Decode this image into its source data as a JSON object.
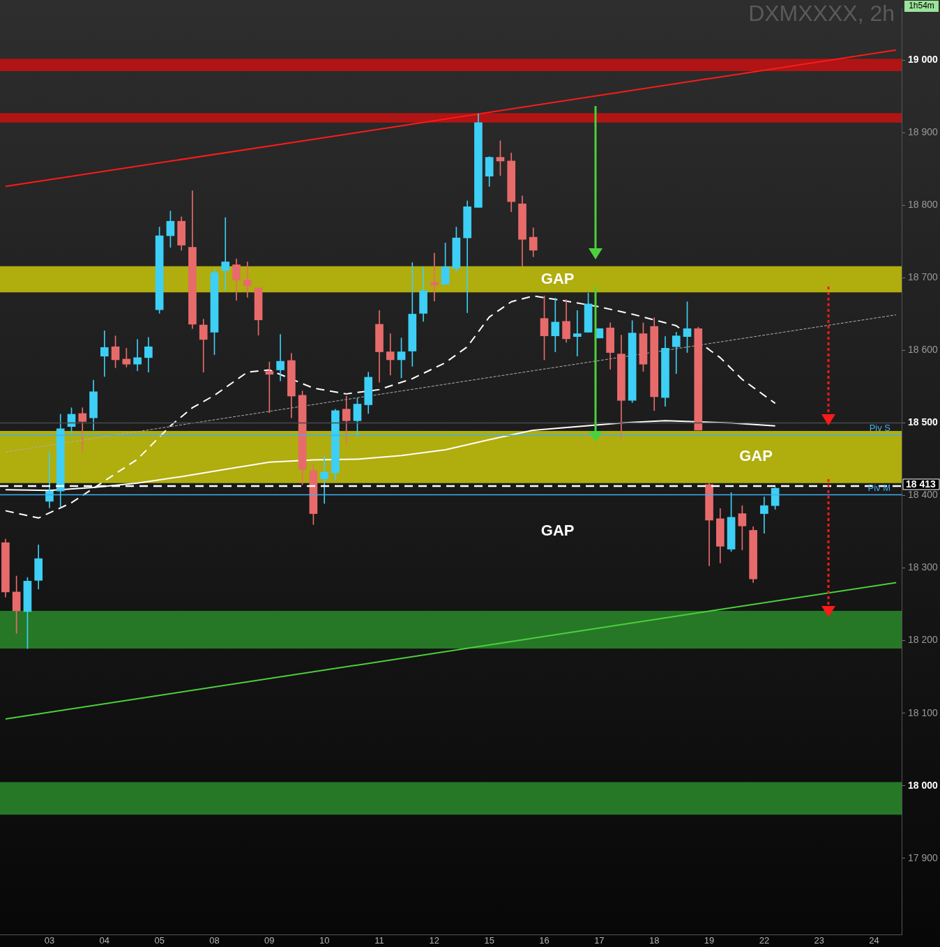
{
  "chart_data": {
    "type": "candlestick",
    "title": "DXMXXXX, 2h",
    "categories": [
      null,
      null,
      null,
      null,
      "03",
      null,
      null,
      null,
      null,
      "04",
      null,
      null,
      null,
      null,
      "05",
      null,
      null,
      null,
      null,
      "08",
      null,
      null,
      null,
      null,
      "09",
      null,
      null,
      null,
      null,
      "10",
      null,
      null,
      null,
      null,
      "11",
      null,
      null,
      null,
      null,
      "12",
      null,
      null,
      null,
      null,
      "15",
      null,
      null,
      null,
      null,
      "16",
      null,
      null,
      null,
      null,
      "17",
      null,
      null,
      null,
      null,
      "18",
      null,
      null,
      null,
      null,
      "19",
      null,
      null,
      null,
      null,
      "22",
      null,
      null,
      null,
      null,
      "23",
      null,
      null,
      null,
      null,
      "24",
      null,
      null
    ],
    "ohlc": [
      [
        18335,
        18340,
        18260,
        18267
      ],
      [
        18267,
        18289,
        18210,
        18241
      ],
      [
        18240,
        18287,
        18189,
        18282
      ],
      [
        18283,
        18332,
        18271,
        18313
      ],
      [
        18392,
        18461,
        18383,
        18406
      ],
      [
        18406,
        18512,
        18384,
        18492
      ],
      [
        18495,
        18521,
        18486,
        18512
      ],
      [
        18513,
        18521,
        18460,
        18502
      ],
      [
        18507,
        18559,
        18490,
        18543
      ],
      [
        18592,
        18627,
        18564,
        18604
      ],
      [
        18605,
        18620,
        18576,
        18587
      ],
      [
        18588,
        18603,
        18577,
        18581
      ],
      [
        18581,
        18615,
        18572,
        18590
      ],
      [
        18590,
        18618,
        18570,
        18605
      ],
      [
        18656,
        18770,
        18651,
        18758
      ],
      [
        18758,
        18792,
        18742,
        18778
      ],
      [
        18778,
        18784,
        18738,
        18745
      ],
      [
        18742,
        18820,
        18630,
        18636
      ],
      [
        18635,
        18643,
        18570,
        18615
      ],
      [
        18625,
        18713,
        18594,
        18707
      ],
      [
        18710,
        18783,
        18683,
        18722
      ],
      [
        18718,
        18726,
        18669,
        18697
      ],
      [
        18697,
        18722,
        18673,
        18689
      ],
      [
        18686,
        18686,
        18621,
        18642
      ],
      [
        18571,
        18584,
        18514,
        18567
      ],
      [
        18573,
        18622,
        18558,
        18585
      ],
      [
        18586,
        18596,
        18507,
        18537
      ],
      [
        18538,
        18544,
        18415,
        18436
      ],
      [
        18434,
        18443,
        18360,
        18375
      ],
      [
        18423,
        18455,
        18389,
        18432
      ],
      [
        18431,
        18519,
        18421,
        18517
      ],
      [
        18519,
        18537,
        18470,
        18503
      ],
      [
        18503,
        18534,
        18483,
        18526
      ],
      [
        18525,
        18570,
        18513,
        18563
      ],
      [
        18636,
        18655,
        18556,
        18598
      ],
      [
        18598,
        18623,
        18566,
        18587
      ],
      [
        18587,
        18617,
        18562,
        18598
      ],
      [
        18599,
        18721,
        18578,
        18650
      ],
      [
        18651,
        18715,
        18640,
        18682
      ],
      [
        18694,
        18734,
        18668,
        18690
      ],
      [
        18691,
        18748,
        18691,
        18715
      ],
      [
        18713,
        18770,
        18709,
        18755
      ],
      [
        18755,
        18806,
        18652,
        18798
      ],
      [
        18797,
        18926,
        18797,
        18914
      ],
      [
        18840,
        18867,
        18826,
        18866
      ],
      [
        18866,
        18889,
        18841,
        18861
      ],
      [
        18861,
        18872,
        18791,
        18805
      ],
      [
        18802,
        18813,
        18716,
        18753
      ],
      [
        18756,
        18769,
        18729,
        18738
      ],
      [
        18644,
        18675,
        18587,
        18620
      ],
      [
        18620,
        18672,
        18598,
        18639
      ],
      [
        18640,
        18670,
        18611,
        18616
      ],
      [
        18619,
        18655,
        18592,
        18623
      ],
      [
        18625,
        18679,
        18625,
        18664
      ],
      [
        18617,
        18630,
        18617,
        18630
      ],
      [
        18631,
        18638,
        18574,
        18597
      ],
      [
        18595,
        18621,
        18479,
        18531
      ],
      [
        18531,
        18641,
        18528,
        18624
      ],
      [
        18623,
        18638,
        18571,
        18581
      ],
      [
        18633,
        18645,
        18517,
        18536
      ],
      [
        18535,
        18619,
        18523,
        18603
      ],
      [
        18605,
        18625,
        18568,
        18620
      ],
      [
        18619,
        18667,
        18597,
        18630
      ],
      [
        18630,
        18632,
        18490,
        18490
      ],
      [
        18415,
        18417,
        18303,
        18366
      ],
      [
        18368,
        18382,
        18307,
        18330
      ],
      [
        18326,
        18404,
        18323,
        18370
      ],
      [
        18375,
        18386,
        18325,
        18358
      ],
      [
        18352,
        18357,
        18280,
        18285
      ],
      [
        18375,
        18398,
        18348,
        18386
      ],
      [
        18386,
        18411,
        18381,
        18410
      ],
      null,
      null,
      null,
      null,
      null,
      null,
      null,
      null,
      null,
      null,
      null
    ],
    "colors": [
      "#e86b6b",
      "#e86b6b",
      "#3dcff5",
      "#3dcff5",
      "#3dcff5",
      "#3dcff5",
      "#3dcff5",
      "#e86b6b",
      "#3dcff5",
      "#3dcff5",
      "#e86b6b",
      "#e86b6b",
      "#3dcff5",
      "#3dcff5",
      "#3dcff5",
      "#3dcff5",
      "#e86b6b",
      "#e86b6b",
      "#e86b6b",
      "#3dcff5",
      "#3dcff5",
      "#e86b6b",
      "#e86b6b",
      "#e86b6b",
      "#e86b6b",
      "#3dcff5",
      "#e86b6b",
      "#e86b6b",
      "#e86b6b",
      "#3dcff5",
      "#3dcff5",
      "#e86b6b",
      "#3dcff5",
      "#3dcff5",
      "#e86b6b",
      "#e86b6b",
      "#3dcff5",
      "#3dcff5",
      "#3dcff5",
      "#e86b6b",
      "#3dcff5",
      "#3dcff5",
      "#3dcff5",
      "#3dcff5",
      "#3dcff5",
      "#e86b6b",
      "#e86b6b",
      "#e86b6b",
      "#e86b6b",
      "#e86b6b",
      "#3dcff5",
      "#e86b6b",
      "#3dcff5",
      "#3dcff5",
      "#3dcff5",
      "#e86b6b",
      "#e86b6b",
      "#3dcff5",
      "#e86b6b",
      "#e86b6b",
      "#3dcff5",
      "#3dcff5",
      "#3dcff5",
      "#e86b6b",
      "#e86b6b",
      "#e86b6b",
      "#3dcff5",
      "#e86b6b",
      "#e86b6b",
      "#3dcff5",
      "#3dcff5",
      null,
      null,
      null,
      null,
      null,
      null,
      null,
      null,
      null,
      null,
      null
    ],
    "series": [
      {
        "type": "line",
        "color": "#ffffff",
        "line_style": "solid",
        "values": [
          18408,
          null,
          null,
          null,
          18407,
          null,
          null,
          null,
          18411,
          null,
          null,
          null,
          18417,
          null,
          null,
          null,
          18426,
          null,
          null,
          null,
          18436,
          null,
          null,
          null,
          18446,
          null,
          null,
          null,
          18449,
          null,
          null,
          null,
          18450,
          null,
          null,
          null,
          18455,
          null,
          null,
          null,
          18463,
          null,
          null,
          null,
          18477,
          null,
          null,
          null,
          18490,
          null,
          null,
          null,
          18495,
          null,
          null,
          null,
          18500,
          null,
          null,
          null,
          18503,
          null,
          null,
          null,
          null,
          null,
          18500,
          null,
          null,
          null,
          18496,
          null,
          null,
          null,
          null,
          null,
          null,
          null,
          null,
          null,
          null,
          null
        ]
      },
      {
        "type": "line",
        "color": "#ffffff",
        "line_style": "dashed",
        "values": [
          18379,
          null,
          null,
          18369,
          null,
          null,
          18390,
          null,
          null,
          18420,
          null,
          null,
          18450,
          null,
          null,
          18496,
          null,
          18521,
          null,
          18538,
          null,
          null,
          18570,
          null,
          18573,
          null,
          null,
          null,
          18548,
          null,
          null,
          18540,
          null,
          null,
          18546,
          null,
          null,
          18561,
          null,
          null,
          18583,
          null,
          18605,
          null,
          18646,
          null,
          18667,
          null,
          18675,
          null,
          null,
          18668,
          null,
          null,
          18660,
          null,
          null,
          18650,
          null,
          null,
          null,
          18634,
          null,
          null,
          null,
          18590,
          null,
          18560,
          null,
          null,
          18527,
          null,
          null,
          null,
          null,
          null,
          null,
          null,
          null,
          null,
          null,
          null
        ]
      },
      {
        "type": "line",
        "color": "#ff1a1a",
        "line_style": "solid",
        "values": [
          18826,
          null,
          null,
          null,
          null,
          null,
          null,
          null,
          null,
          null,
          null,
          null,
          null,
          null,
          null,
          null,
          null,
          null,
          null,
          null,
          null,
          null,
          null,
          null,
          null,
          null,
          null,
          null,
          null,
          null,
          null,
          null,
          null,
          null,
          null,
          null,
          null,
          null,
          null,
          null,
          null,
          null,
          null,
          null,
          null,
          null,
          null,
          null,
          null,
          null,
          null,
          null,
          null,
          null,
          null,
          null,
          null,
          null,
          null,
          null,
          null,
          null,
          null,
          null,
          null,
          null,
          null,
          null,
          null,
          null,
          null,
          null,
          null,
          null,
          null,
          null,
          null,
          null,
          null,
          null,
          null,
          19014
        ]
      },
      {
        "type": "line",
        "color": "#4cd13c",
        "line_style": "solid",
        "values": [
          18092,
          null,
          null,
          null,
          null,
          null,
          null,
          null,
          null,
          null,
          null,
          null,
          null,
          null,
          null,
          null,
          null,
          null,
          null,
          null,
          null,
          null,
          null,
          null,
          null,
          null,
          null,
          null,
          null,
          null,
          null,
          null,
          null,
          null,
          null,
          null,
          null,
          null,
          null,
          null,
          null,
          null,
          null,
          null,
          null,
          null,
          null,
          null,
          null,
          null,
          null,
          null,
          null,
          null,
          null,
          null,
          null,
          null,
          null,
          null,
          null,
          null,
          null,
          null,
          null,
          null,
          null,
          null,
          null,
          null,
          null,
          null,
          null,
          null,
          null,
          null,
          null,
          null,
          null,
          null,
          null,
          18280
        ]
      },
      {
        "type": "line",
        "color": "#b0b0b0",
        "line_style": "dotted",
        "values": [
          18460,
          null,
          null,
          null,
          null,
          null,
          null,
          null,
          null,
          null,
          null,
          null,
          null,
          null,
          null,
          null,
          null,
          null,
          null,
          null,
          null,
          null,
          null,
          null,
          null,
          null,
          null,
          null,
          null,
          null,
          null,
          null,
          null,
          null,
          null,
          null,
          null,
          null,
          null,
          null,
          null,
          null,
          null,
          null,
          null,
          null,
          null,
          null,
          null,
          null,
          null,
          null,
          null,
          null,
          null,
          null,
          null,
          null,
          null,
          null,
          null,
          null,
          null,
          null,
          null,
          null,
          null,
          null,
          null,
          null,
          null,
          null,
          null,
          null,
          null,
          null,
          null,
          null,
          null,
          null,
          null,
          18649
        ]
      }
    ],
    "ylim": [
      17795,
      19071
    ],
    "yticks": [
      {
        "value": 17900,
        "label": "17 900"
      },
      {
        "value": 18000,
        "label": "18 000"
      },
      {
        "value": 18100,
        "label": "18 100"
      },
      {
        "value": 18200,
        "label": "18 200"
      },
      {
        "value": 18300,
        "label": "18 300"
      },
      {
        "value": 18400,
        "label": "18 400"
      },
      {
        "value": 18500,
        "label": "18 500"
      },
      {
        "value": 18600,
        "label": "18 600"
      },
      {
        "value": 18700,
        "label": "18 700"
      },
      {
        "value": 18800,
        "label": "18 800"
      },
      {
        "value": 18900,
        "label": "18 900"
      },
      {
        "value": 19000,
        "label": "19 000"
      }
    ],
    "bands": [
      {
        "axis": "y",
        "from": 18985,
        "to": 19002,
        "color": "#b01414"
      },
      {
        "axis": "y",
        "from": 18914,
        "to": 18927,
        "color": "#b01414"
      },
      {
        "axis": "y",
        "from": 18680,
        "to": 18716,
        "color": "#b0ad0e",
        "label": "GAP"
      },
      {
        "axis": "y",
        "from": 18417,
        "to": 18489,
        "color": "#b0ad0e",
        "label": "GAP"
      },
      {
        "axis": "y",
        "from": 18189,
        "to": 18241,
        "color": "#267826"
      },
      {
        "axis": "y",
        "from": 17960,
        "to": 18005,
        "color": "#267826"
      }
    ],
    "ref_lines": [
      {
        "axis": "y",
        "value": 18413,
        "label": "18 413",
        "color": "#ffffff",
        "line_style": "dashed"
      },
      {
        "axis": "y",
        "value": 18401,
        "label": "Piv M",
        "color": "#3fb0f0",
        "line_style": "solid"
      },
      {
        "axis": "y",
        "value": 18483,
        "label": "Piv S",
        "color": "#3fb0f0",
        "line_style": "solid"
      },
      {
        "axis": "y",
        "value": 18500,
        "color": "#4a4a4a",
        "line_style": "solid"
      }
    ],
    "annotations": [
      "GAP",
      "1h54m"
    ],
    "marker": "none",
    "grid": false,
    "legend": false
  }
}
